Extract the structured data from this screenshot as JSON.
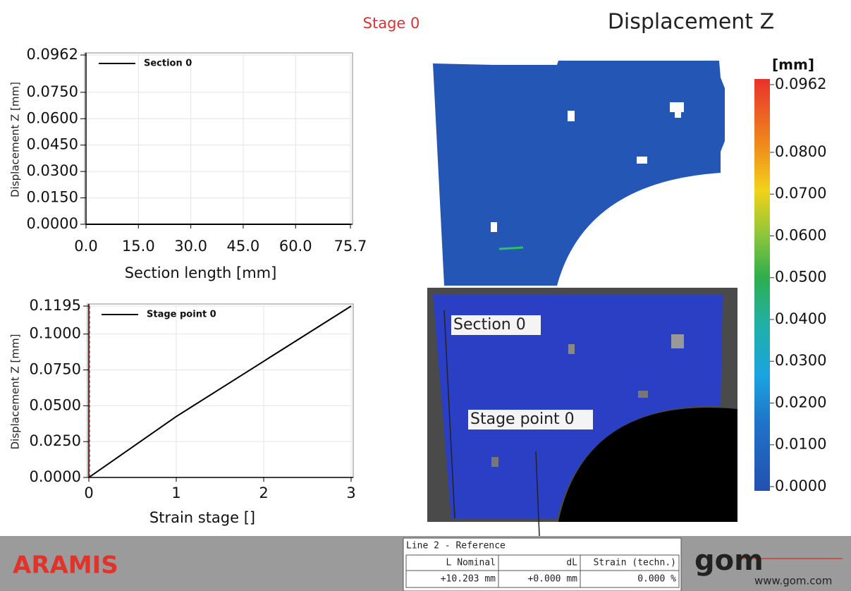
{
  "header": {
    "stage": "Stage 0",
    "title": "Displacement Z"
  },
  "chart_data": [
    {
      "type": "line",
      "ylabel": "Displacement Z [mm]",
      "xlabel": "Section length [mm]",
      "xlim": [
        0,
        75.7
      ],
      "ylim": [
        0,
        0.0962
      ],
      "xticks": [
        {
          "value": 0,
          "label": "0.0"
        },
        {
          "value": 15,
          "label": "15.0"
        },
        {
          "value": 30,
          "label": "30.0"
        },
        {
          "value": 45,
          "label": "45.0"
        },
        {
          "value": 60,
          "label": "60.0"
        },
        75.7
      ],
      "yticks": [
        {
          "value": 0,
          "label": "0.0000"
        },
        {
          "value": 0.015,
          "label": "0.0150"
        },
        {
          "value": 0.03,
          "label": "0.0300"
        },
        {
          "value": 0.045,
          "label": "0.0450"
        },
        {
          "value": 0.06,
          "label": "0.0600"
        },
        {
          "value": 0.075,
          "label": "0.0750"
        },
        0.0962
      ],
      "grid": true,
      "x": [
        0,
        75.7
      ],
      "series": [
        {
          "name": "Section 0",
          "color": "#000000",
          "values": [
            0,
            0
          ]
        }
      ]
    },
    {
      "type": "line",
      "ylabel": "Displacement Z [mm]",
      "xlabel": "Strain stage []",
      "xlim": [
        0,
        3
      ],
      "ylim": [
        0,
        0.1195
      ],
      "xticks": [
        0,
        1,
        2,
        3
      ],
      "yticks": [
        {
          "value": 0,
          "label": "0.0000"
        },
        {
          "value": 0.025,
          "label": "0.0250"
        },
        {
          "value": 0.05,
          "label": "0.0500"
        },
        {
          "value": 0.075,
          "label": "0.0750"
        },
        {
          "value": 0.1,
          "label": "0.1000"
        },
        0.1195
      ],
      "grid": true,
      "x": [
        0,
        1,
        2,
        3
      ],
      "series": [
        {
          "name": "Stage point 0",
          "color": "#000000",
          "values": [
            0,
            0.0425,
            0.081,
            0.1195
          ]
        }
      ]
    }
  ],
  "colorbar": {
    "unit": "[mm]",
    "lim": [
      0,
      0.0962
    ],
    "ticks": [
      0.0962,
      {
        "value": 0.08,
        "label": "0.0800"
      },
      {
        "value": 0.07,
        "label": "0.0700"
      },
      {
        "value": 0.06,
        "label": "0.0600"
      },
      {
        "value": 0.05,
        "label": "0.0500"
      },
      {
        "value": 0.04,
        "label": "0.0400"
      },
      {
        "value": 0.03,
        "label": "0.0300"
      },
      {
        "value": 0.02,
        "label": "0.0200"
      },
      {
        "value": 0.01,
        "label": "0.0100"
      },
      {
        "value": 0,
        "label": "0.0000"
      }
    ]
  },
  "overlay_labels": [
    "Section 0",
    "Stage point 0"
  ],
  "footer": {
    "product": "ARAMIS",
    "table": {
      "title": "Line 2 - Reference",
      "header": [
        "L Nominal",
        "dL",
        "Strain (techn.)"
      ],
      "rows": [
        [
          "+10.203 mm",
          "+0.000 mm",
          "0.000 %"
        ]
      ]
    },
    "logo": "gom",
    "url": "www.gom.com"
  }
}
